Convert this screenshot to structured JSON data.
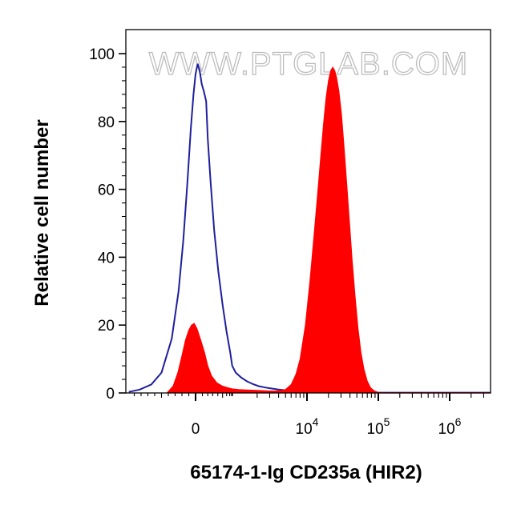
{
  "chart_data": {
    "type": "area",
    "xlabel": "65174-1-Ig CD235a (HIR2)",
    "ylabel": "Relative cell number",
    "watermark": "WWW.PTGLAB.COM",
    "x_scale": "biexponential",
    "xlim": [
      -1000,
      10000000
    ],
    "ylim": [
      0,
      100
    ],
    "y_ticks": [
      0,
      20,
      40,
      60,
      80,
      100
    ],
    "x_ticks": [
      {
        "value": 0,
        "base": "0",
        "exp": ""
      },
      {
        "value": 10000,
        "base": "10",
        "exp": "4"
      },
      {
        "value": 100000,
        "base": "10",
        "exp": "5"
      },
      {
        "value": 1000000,
        "base": "10",
        "exp": "6"
      }
    ],
    "grid": false,
    "legend": "none",
    "series": [
      {
        "style": "outline",
        "color": "#1f1f9e",
        "points": [
          [
            -980,
            0.3
          ],
          [
            -820,
            1
          ],
          [
            -650,
            2.5
          ],
          [
            -500,
            6
          ],
          [
            -350,
            16
          ],
          [
            -250,
            30
          ],
          [
            -180,
            45
          ],
          [
            -120,
            62
          ],
          [
            -70,
            78
          ],
          [
            -30,
            88
          ],
          [
            0,
            94
          ],
          [
            30,
            97
          ],
          [
            60,
            95
          ],
          [
            90,
            91
          ],
          [
            120,
            89
          ],
          [
            160,
            86
          ],
          [
            200,
            75
          ],
          [
            260,
            62
          ],
          [
            330,
            48
          ],
          [
            410,
            36
          ],
          [
            500,
            26
          ],
          [
            600,
            18
          ],
          [
            720,
            12
          ],
          [
            850,
            8
          ],
          [
            1000,
            6
          ],
          [
            1200,
            4.5
          ],
          [
            1450,
            3.4
          ],
          [
            1750,
            2.6
          ],
          [
            2100,
            2
          ],
          [
            2600,
            1.6
          ],
          [
            3200,
            1.3
          ],
          [
            4000,
            1
          ],
          [
            5000,
            0.8
          ],
          [
            6500,
            0.6
          ],
          [
            8500,
            0.4
          ],
          [
            11000,
            0.3
          ],
          [
            15000,
            0.2
          ],
          [
            30000,
            0.15
          ],
          [
            100000,
            0.1
          ],
          [
            1000000,
            0.1
          ],
          [
            10000000,
            0.1
          ]
        ]
      },
      {
        "style": "filled",
        "color": "#ff0000",
        "points": [
          [
            -420,
            0
          ],
          [
            -330,
            2
          ],
          [
            -260,
            6
          ],
          [
            -200,
            11
          ],
          [
            -150,
            15.5
          ],
          [
            -100,
            18.5
          ],
          [
            -60,
            20
          ],
          [
            -20,
            20.5
          ],
          [
            20,
            19
          ],
          [
            70,
            16
          ],
          [
            130,
            12
          ],
          [
            200,
            8
          ],
          [
            280,
            5
          ],
          [
            380,
            3
          ],
          [
            500,
            2
          ],
          [
            650,
            1.5
          ],
          [
            850,
            1.2
          ],
          [
            1100,
            1
          ],
          [
            1400,
            0.9
          ],
          [
            1800,
            0.8
          ],
          [
            2300,
            0.7
          ],
          [
            3000,
            0.6
          ],
          [
            3600,
            0.6
          ],
          [
            4200,
            0.7
          ],
          [
            5000,
            1
          ],
          [
            6000,
            2.5
          ],
          [
            7000,
            5.5
          ],
          [
            8000,
            10
          ],
          [
            9500,
            20
          ],
          [
            11000,
            33
          ],
          [
            12500,
            46
          ],
          [
            14000,
            58
          ],
          [
            15500,
            69
          ],
          [
            17000,
            79
          ],
          [
            18500,
            87
          ],
          [
            20000,
            92
          ],
          [
            21500,
            95
          ],
          [
            23000,
            96
          ],
          [
            24500,
            95
          ],
          [
            26000,
            93
          ],
          [
            28000,
            89
          ],
          [
            30500,
            82
          ],
          [
            33000,
            73
          ],
          [
            36000,
            62
          ],
          [
            39500,
            50
          ],
          [
            43000,
            39
          ],
          [
            47500,
            28
          ],
          [
            52000,
            19
          ],
          [
            57000,
            12
          ],
          [
            63000,
            7
          ],
          [
            70000,
            3.5
          ],
          [
            78000,
            1.5
          ],
          [
            88000,
            0.6
          ],
          [
            100000,
            0.2
          ],
          [
            120000,
            0.1
          ],
          [
            1000000,
            0.1
          ],
          [
            10000000,
            0.1
          ]
        ]
      }
    ]
  }
}
